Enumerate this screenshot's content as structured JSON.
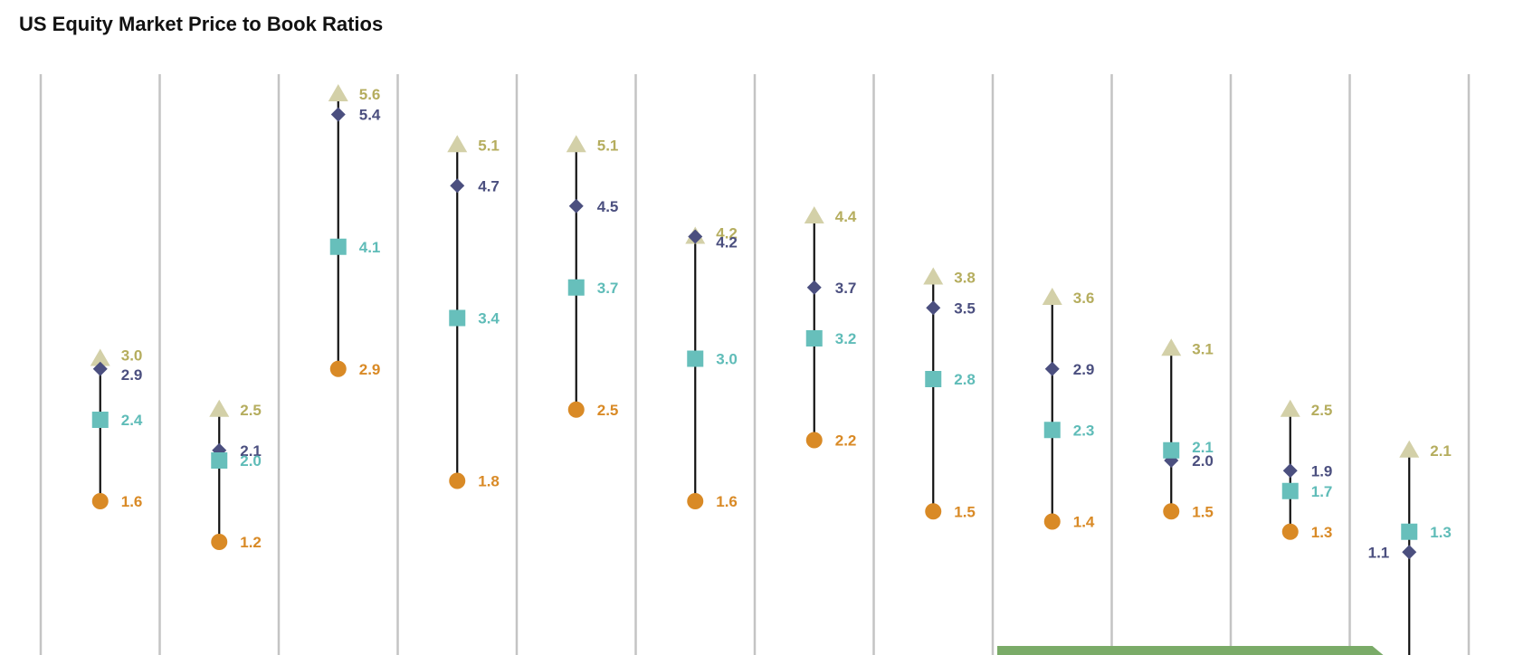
{
  "title": "US Equity Market Price to Book Ratios",
  "chart_data": {
    "type": "scatter",
    "title": "US Equity Market Price to Book Ratios",
    "xlabel": "",
    "ylabel": "",
    "columns": 12,
    "grid": "vertical",
    "series": [
      {
        "marker": "triangle",
        "color": "#d3d0a8",
        "label_color": "#b5ad5e",
        "values": [
          3.0,
          2.5,
          5.6,
          5.1,
          5.1,
          4.2,
          4.4,
          3.8,
          3.6,
          3.1,
          2.5,
          2.1
        ]
      },
      {
        "marker": "diamond",
        "color": "#4b4f7f",
        "label_color": "#4b4f7f",
        "values": [
          2.9,
          2.1,
          5.4,
          4.7,
          4.5,
          4.2,
          3.7,
          3.5,
          2.9,
          2.0,
          1.9,
          1.1
        ]
      },
      {
        "marker": "square",
        "color": "#67bfbb",
        "label_color": "#5fbcb8",
        "values": [
          2.4,
          2.0,
          4.1,
          3.4,
          3.7,
          3.0,
          3.2,
          2.8,
          2.3,
          2.1,
          1.7,
          1.3
        ]
      },
      {
        "marker": "circle",
        "color": "#d98a26",
        "label_color": "#d98a26",
        "values": [
          1.6,
          1.2,
          2.9,
          1.8,
          2.5,
          1.6,
          2.2,
          1.5,
          1.4,
          1.5,
          1.3,
          null
        ]
      }
    ],
    "highlight_bar": {
      "color": "#7aab68",
      "from_column": 8,
      "to_column": 11
    }
  }
}
